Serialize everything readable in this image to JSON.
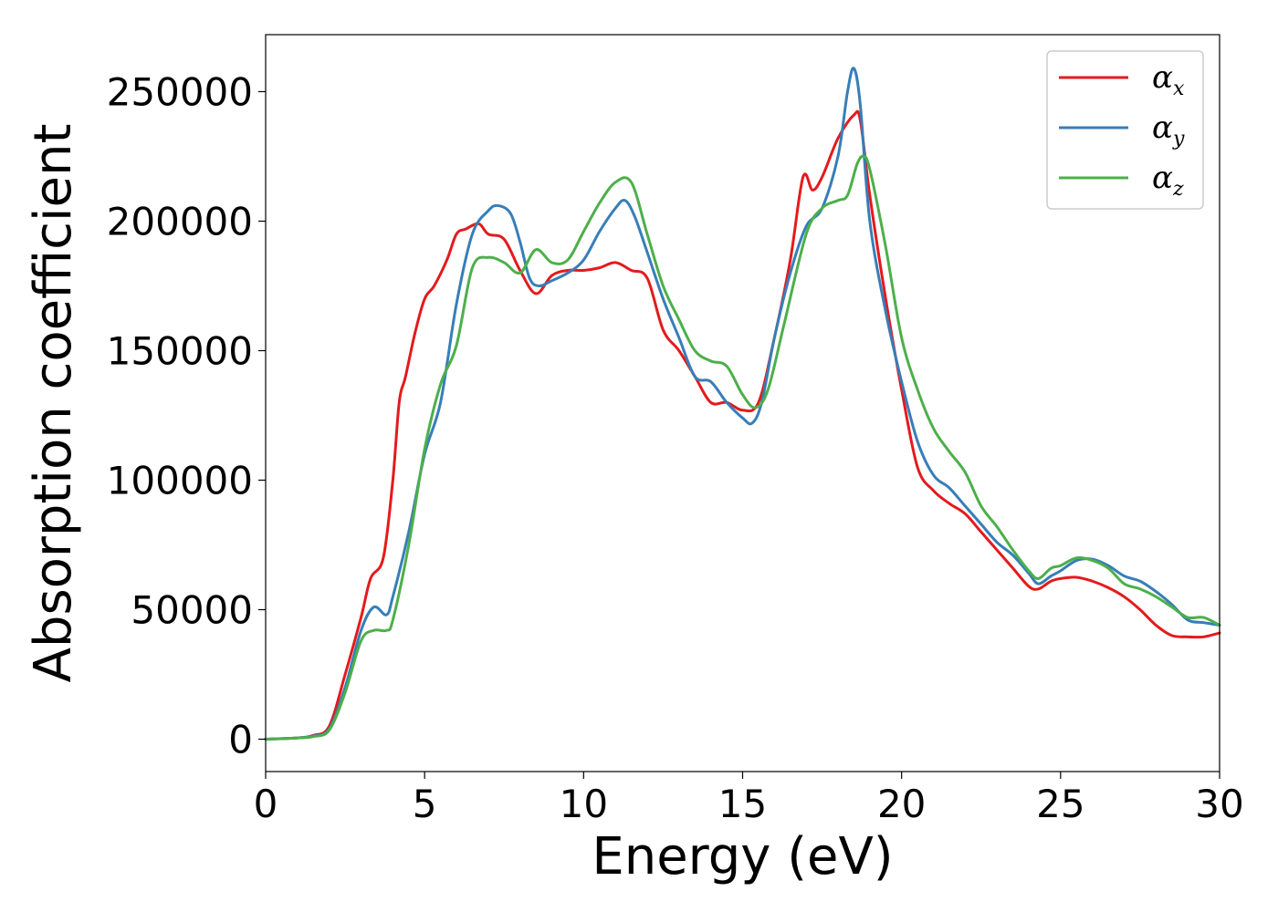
{
  "chart_data": {
    "type": "line",
    "xlabel": "Energy (eV)",
    "ylabel": "Absorption coefficient",
    "xlim": [
      0,
      30
    ],
    "ylim": [
      -12500,
      272000
    ],
    "xticks": [
      0,
      5,
      10,
      15,
      20,
      25,
      30
    ],
    "xtick_labels": [
      "0",
      "5",
      "10",
      "15",
      "20",
      "25",
      "30"
    ],
    "yticks": [
      0,
      50000,
      100000,
      150000,
      200000,
      250000
    ],
    "ytick_labels": [
      "0",
      "50000",
      "100000",
      "150000",
      "200000",
      "250000"
    ],
    "grid": false,
    "legend_position": "top-right",
    "series": [
      {
        "name": "α",
        "subscript": "x",
        "color": "#e41a1c",
        "x": [
          0,
          1,
          1.5,
          2.0,
          2.5,
          3.0,
          3.3,
          3.7,
          4.0,
          4.2,
          4.4,
          4.7,
          5.0,
          5.3,
          5.7,
          6.0,
          6.3,
          6.7,
          7.0,
          7.5,
          8.0,
          8.5,
          9.0,
          9.5,
          10.0,
          10.5,
          11.0,
          11.5,
          12.0,
          12.5,
          13.0,
          13.5,
          14.0,
          14.5,
          15.0,
          15.5,
          16.0,
          16.5,
          16.9,
          17.2,
          17.5,
          18.0,
          18.5,
          18.7,
          19.0,
          19.5,
          20.0,
          20.5,
          21.0,
          21.5,
          22.0,
          22.5,
          23.0,
          23.5,
          24.0,
          24.3,
          24.7,
          25.0,
          25.5,
          26.0,
          26.5,
          27.0,
          27.5,
          28.0,
          28.5,
          29.0,
          29.5,
          30.0
        ],
        "y": [
          0,
          500,
          1500,
          5000,
          25000,
          47000,
          62000,
          70000,
          100000,
          130000,
          140000,
          157000,
          170000,
          175000,
          185000,
          195000,
          197000,
          199000,
          195000,
          193000,
          181000,
          172000,
          179000,
          181000,
          181000,
          182000,
          184000,
          181000,
          178000,
          158000,
          150000,
          140000,
          130000,
          130000,
          127000,
          130000,
          155000,
          185000,
          217000,
          212000,
          217000,
          232000,
          241000,
          239000,
          210000,
          170000,
          135000,
          105000,
          96000,
          91000,
          87000,
          80000,
          73000,
          66000,
          59000,
          58000,
          61000,
          62000,
          62500,
          61000,
          58500,
          55000,
          50000,
          44000,
          40000,
          39500,
          39500,
          41000
        ]
      },
      {
        "name": "α",
        "subscript": "y",
        "color": "#377eb8",
        "x": [
          0,
          1,
          1.5,
          2.0,
          2.5,
          3.0,
          3.4,
          3.8,
          4.0,
          4.5,
          5.0,
          5.5,
          6.0,
          6.5,
          7.0,
          7.3,
          7.7,
          8.0,
          8.3,
          8.6,
          9.0,
          9.5,
          10.0,
          10.5,
          11.0,
          11.3,
          11.6,
          12.0,
          12.5,
          13.0,
          13.5,
          14.0,
          14.5,
          15.0,
          15.3,
          15.6,
          16.0,
          16.5,
          17.0,
          17.5,
          18.0,
          18.3,
          18.5,
          18.7,
          19.0,
          19.5,
          20.0,
          20.5,
          21.0,
          21.5,
          22.0,
          22.5,
          23.0,
          23.5,
          24.0,
          24.3,
          24.7,
          25.0,
          25.5,
          26.0,
          26.5,
          27.0,
          27.5,
          28.0,
          28.5,
          29.0,
          29.5,
          30.0
        ],
        "y": [
          0,
          500,
          1200,
          4000,
          20000,
          42000,
          51000,
          48000,
          55000,
          80000,
          110000,
          130000,
          168000,
          195000,
          204000,
          206000,
          203000,
          192000,
          178000,
          175000,
          177000,
          180000,
          185000,
          196000,
          205000,
          208000,
          202000,
          188000,
          170000,
          155000,
          140000,
          138000,
          130000,
          124000,
          122000,
          130000,
          155000,
          180000,
          198000,
          205000,
          225000,
          250000,
          259000,
          245000,
          200000,
          165000,
          138000,
          115000,
          102000,
          97000,
          90000,
          83000,
          76000,
          71000,
          64000,
          60000,
          63000,
          65000,
          69000,
          69500,
          67000,
          63000,
          61000,
          57000,
          52000,
          46000,
          45000,
          44000
        ]
      },
      {
        "name": "α",
        "subscript": "z",
        "color": "#4daf4a",
        "x": [
          0,
          1,
          1.5,
          2.0,
          2.5,
          3.0,
          3.4,
          3.8,
          4.0,
          4.5,
          5.0,
          5.5,
          6.0,
          6.5,
          7.0,
          7.5,
          8.0,
          8.5,
          9.0,
          9.5,
          10.0,
          10.5,
          11.0,
          11.5,
          12.0,
          12.5,
          13.0,
          13.5,
          14.0,
          14.5,
          15.0,
          15.4,
          15.8,
          16.3,
          17.0,
          17.5,
          18.0,
          18.3,
          18.6,
          18.8,
          19.0,
          19.5,
          20.0,
          20.5,
          21.0,
          21.5,
          22.0,
          22.5,
          23.0,
          23.5,
          24.0,
          24.3,
          24.7,
          25.0,
          25.5,
          26.0,
          26.5,
          27.0,
          27.5,
          28.0,
          28.5,
          29.0,
          29.5,
          30.0
        ],
        "y": [
          0,
          500,
          1000,
          3500,
          18000,
          38000,
          42000,
          42000,
          46000,
          75000,
          112000,
          137000,
          152000,
          182000,
          186000,
          184000,
          180000,
          189000,
          184000,
          185000,
          196000,
          207000,
          215000,
          215000,
          195000,
          175000,
          162000,
          150000,
          146000,
          144000,
          133000,
          128000,
          135000,
          160000,
          195000,
          205000,
          208000,
          210000,
          222000,
          225000,
          220000,
          190000,
          155000,
          135000,
          120000,
          111000,
          103000,
          90000,
          82000,
          73000,
          65000,
          62000,
          66000,
          67000,
          70000,
          69000,
          66000,
          60000,
          58000,
          55000,
          51000,
          47000,
          47000,
          44000
        ]
      }
    ]
  }
}
